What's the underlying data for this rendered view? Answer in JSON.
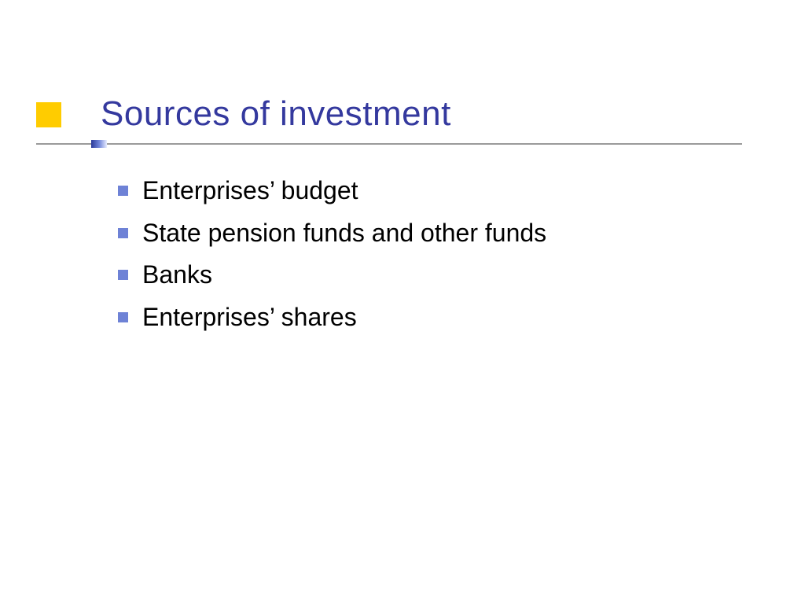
{
  "slide": {
    "title": "Sources of investment",
    "title_color": "#34399e",
    "title_fontsize": 44,
    "accent_block_color": "#ffcc00",
    "rule_color": "#9a9a9a",
    "rule_knob_gradient_from": "#2b3a99",
    "rule_knob_gradient_to": "#e8edff",
    "bullet_marker_color": "#6e82d6",
    "bullet_text_color": "#000000",
    "bullet_fontsize": 32,
    "background_color": "#ffffff",
    "items": [
      "Enterprises’ budget",
      "State pension funds and other funds",
      "Banks",
      "Enterprises’ shares"
    ]
  }
}
